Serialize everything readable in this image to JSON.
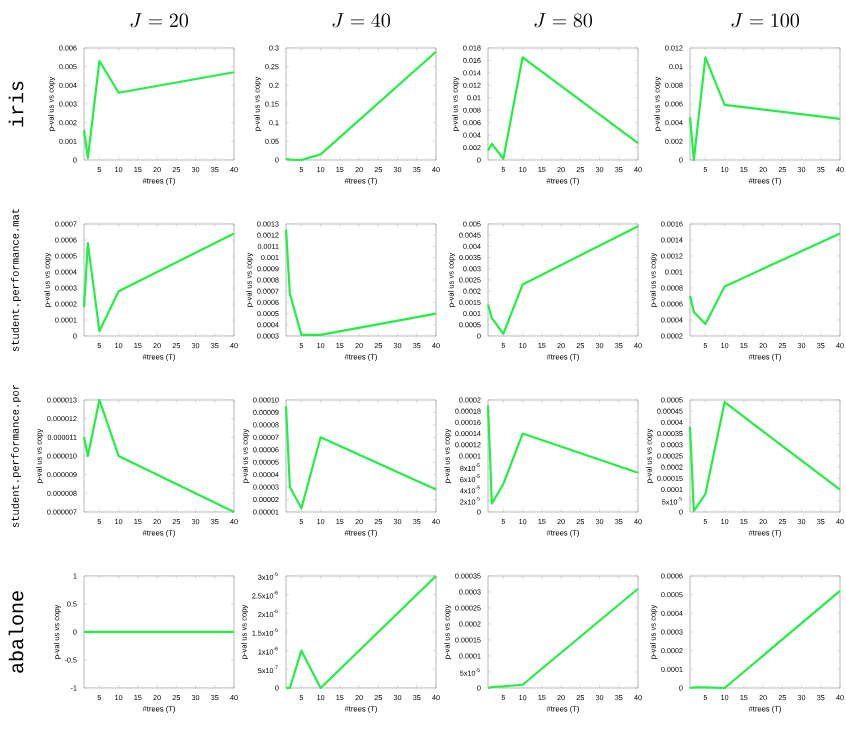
{
  "chart_data": [
    {
      "type": "line",
      "title": "J = 20",
      "annotations": [
        "iris"
      ],
      "xlabel": "#trees (T)",
      "ylabel": "p-val us vs copy",
      "x": [
        1,
        2,
        5,
        10,
        40
      ],
      "values": [
        0.0016,
        0.0001,
        0.0053,
        0.0036,
        0.0047
      ],
      "color": "#22ee44",
      "xlim": [
        1,
        40
      ],
      "xticks": [
        5,
        10,
        15,
        20,
        25,
        30,
        35,
        40
      ],
      "ylim": [
        0,
        0.006
      ],
      "yticks": [
        0,
        0.001,
        0.002,
        0.003,
        0.004,
        0.005,
        0.006
      ]
    },
    {
      "type": "line",
      "title": "J = 40",
      "xlabel": "#trees (T)",
      "ylabel": "p-val us vs copy",
      "x": [
        1,
        2,
        5,
        10,
        40
      ],
      "values": [
        0.003,
        0.001,
        0.0,
        0.015,
        0.29
      ],
      "color": "#22ee44",
      "xlim": [
        1,
        40
      ],
      "xticks": [
        5,
        10,
        15,
        20,
        25,
        30,
        35,
        40
      ],
      "ylim": [
        0,
        0.3
      ],
      "yticks": [
        0,
        0.05,
        0.1,
        0.15,
        0.2,
        0.25,
        0.3
      ]
    },
    {
      "type": "line",
      "title": "J = 80",
      "xlabel": "#trees (T)",
      "ylabel": "p-val us vs copy",
      "x": [
        1,
        2,
        5,
        10,
        40
      ],
      "values": [
        0.0015,
        0.0026,
        0.0002,
        0.0165,
        0.0027
      ],
      "color": "#22ee44",
      "xlim": [
        1,
        40
      ],
      "xticks": [
        5,
        10,
        15,
        20,
        25,
        30,
        35,
        40
      ],
      "ylim": [
        0,
        0.018
      ],
      "yticks": [
        0,
        0.002,
        0.004,
        0.006,
        0.008,
        0.01,
        0.012,
        0.014,
        0.016,
        0.018
      ]
    },
    {
      "type": "line",
      "title": "J = 100",
      "xlabel": "#trees (T)",
      "ylabel": "p-val us vs copy",
      "x": [
        1,
        2,
        5,
        10,
        40
      ],
      "values": [
        0.0046,
        0.0,
        0.011,
        0.0059,
        0.0044
      ],
      "color": "#22ee44",
      "xlim": [
        1,
        40
      ],
      "xticks": [
        5,
        10,
        15,
        20,
        25,
        30,
        35,
        40
      ],
      "ylim": [
        0,
        0.012
      ],
      "yticks": [
        0,
        0.002,
        0.004,
        0.006,
        0.008,
        0.01,
        0.012
      ]
    },
    {
      "type": "line",
      "annotations": [
        "student.performance.mat"
      ],
      "xlabel": "#trees (T)",
      "ylabel": "p-val us vs copy",
      "x": [
        1,
        2,
        5,
        10,
        40
      ],
      "values": [
        0.00018,
        0.00058,
        3e-05,
        0.00028,
        0.00064
      ],
      "color": "#22ee44",
      "xlim": [
        1,
        40
      ],
      "xticks": [
        5,
        10,
        15,
        20,
        25,
        30,
        35,
        40
      ],
      "ylim": [
        0,
        0.0007
      ],
      "yticks": [
        0,
        0.0001,
        0.0002,
        0.0003,
        0.0004,
        0.0005,
        0.0006,
        0.0007
      ]
    },
    {
      "type": "line",
      "xlabel": "#trees (T)",
      "ylabel": "p-val us vs copy",
      "x": [
        1,
        2,
        5,
        10,
        40
      ],
      "values": [
        0.00125,
        0.00068,
        0.00031,
        0.00031,
        0.0005
      ],
      "color": "#22ee44",
      "xlim": [
        1,
        40
      ],
      "xticks": [
        5,
        10,
        15,
        20,
        25,
        30,
        35,
        40
      ],
      "ylim": [
        0.0003,
        0.0013
      ],
      "yticks": [
        0.0003,
        0.0004,
        0.0005,
        0.0006,
        0.0007,
        0.0008,
        0.0009,
        0.001,
        0.0011,
        0.0012,
        0.0013
      ]
    },
    {
      "type": "line",
      "xlabel": "#trees (T)",
      "ylabel": "p-val us vs copy",
      "x": [
        1,
        2,
        5,
        10,
        40
      ],
      "values": [
        0.0014,
        0.0008,
        0.0001,
        0.0023,
        0.0049
      ],
      "color": "#22ee44",
      "xlim": [
        1,
        40
      ],
      "xticks": [
        5,
        10,
        15,
        20,
        25,
        30,
        35,
        40
      ],
      "ylim": [
        0,
        0.005
      ],
      "yticks": [
        0,
        0.0005,
        0.001,
        0.0015,
        0.002,
        0.0025,
        0.003,
        0.0035,
        0.004,
        0.0045,
        0.005
      ]
    },
    {
      "type": "line",
      "xlabel": "#trees (T)",
      "ylabel": "p-val us vs copy",
      "x": [
        1,
        2,
        5,
        10,
        40
      ],
      "values": [
        0.0007,
        0.0005,
        0.00035,
        0.00082,
        0.00148
      ],
      "color": "#22ee44",
      "xlim": [
        1,
        40
      ],
      "xticks": [
        5,
        10,
        15,
        20,
        25,
        30,
        35,
        40
      ],
      "ylim": [
        0.0002,
        0.0016
      ],
      "yticks": [
        0.0002,
        0.0004,
        0.0006,
        0.0008,
        0.001,
        0.0012,
        0.0014,
        0.0016
      ]
    },
    {
      "type": "line",
      "annotations": [
        "student.performance.por"
      ],
      "xlabel": "#trees (T)",
      "ylabel": "p-val us vs copy",
      "x": [
        1,
        2,
        5,
        10,
        40
      ],
      "values": [
        1.1e-05,
        1e-05,
        1.3e-05,
        1e-05,
        7e-06
      ],
      "color": "#22ee44",
      "xlim": [
        1,
        40
      ],
      "xticks": [
        5,
        10,
        15,
        20,
        25,
        30,
        35,
        40
      ],
      "ylim": [
        7e-06,
        1.3e-05
      ],
      "yticks": [
        {
          "value": 7e-06,
          "label": "0.000007"
        },
        {
          "value": 8e-06,
          "label": "0.000008"
        },
        {
          "value": 9e-06,
          "label": "0.000009"
        },
        {
          "value": 1e-05,
          "label": "0.000010"
        },
        {
          "value": 1.1e-05,
          "label": "0.000011"
        },
        {
          "value": 1.2e-05,
          "label": "0.000012"
        },
        {
          "value": 1.3e-05,
          "label": "0.000013"
        }
      ]
    },
    {
      "type": "line",
      "xlabel": "#trees (T)",
      "ylabel": "p-val us vs copy",
      "x": [
        1,
        2,
        5,
        10,
        40
      ],
      "values": [
        9.5e-05,
        3e-05,
        1.3e-05,
        7e-05,
        2.8e-05
      ],
      "color": "#22ee44",
      "xlim": [
        1,
        40
      ],
      "xticks": [
        5,
        10,
        15,
        20,
        25,
        30,
        35,
        40
      ],
      "ylim": [
        1e-05,
        0.0001
      ],
      "yticks": [
        {
          "value": 1e-05,
          "label": "0.00001"
        },
        {
          "value": 2e-05,
          "label": "0.00002"
        },
        {
          "value": 3e-05,
          "label": "0.00003"
        },
        {
          "value": 4e-05,
          "label": "0.00004"
        },
        {
          "value": 5e-05,
          "label": "0.00005"
        },
        {
          "value": 6e-05,
          "label": "0.00006"
        },
        {
          "value": 7e-05,
          "label": "0.00007"
        },
        {
          "value": 8e-05,
          "label": "0.00008"
        },
        {
          "value": 9e-05,
          "label": "0.00009"
        },
        {
          "value": 0.0001,
          "label": "0.00010"
        }
      ]
    },
    {
      "type": "line",
      "xlabel": "#trees (T)",
      "ylabel": "p-val us vs copy",
      "x": [
        1,
        2,
        5,
        10,
        40
      ],
      "values": [
        0.00019,
        1.5e-05,
        5e-05,
        0.00014,
        7e-05
      ],
      "color": "#22ee44",
      "xlim": [
        1,
        40
      ],
      "xticks": [
        5,
        10,
        15,
        20,
        25,
        30,
        35,
        40
      ],
      "ylim": [
        0,
        0.0002
      ],
      "yticks": [
        0,
        {
          "value": 2e-05,
          "label": "2x10$^{-5}$"
        },
        {
          "value": 4e-05,
          "label": "4x10$^{-5}$"
        },
        {
          "value": 6e-05,
          "label": "6x10$^{-5}$"
        },
        {
          "value": 8e-05,
          "label": "8x10$^{-5}$"
        },
        0.0001,
        0.00012,
        0.00014,
        0.00016,
        0.00018,
        0.0002
      ]
    },
    {
      "type": "line",
      "xlabel": "#trees (T)",
      "ylabel": "p-val us vs copy",
      "x": [
        1,
        2,
        5,
        10,
        40
      ],
      "values": [
        0.00038,
        5e-06,
        8e-05,
        0.00049,
        0.0001
      ],
      "color": "#22ee44",
      "xlim": [
        1,
        40
      ],
      "xticks": [
        5,
        10,
        15,
        20,
        25,
        30,
        35,
        40
      ],
      "ylim": [
        0,
        0.0005
      ],
      "yticks": [
        0,
        {
          "value": 5e-05,
          "label": "5x10$^{-5}$"
        },
        0.0001,
        0.00015,
        0.0002,
        0.00025,
        0.0003,
        0.00035,
        0.0004,
        0.00045,
        0.0005
      ]
    },
    {
      "type": "line",
      "annotations": [
        "abalone"
      ],
      "xlabel": "#trees (T)",
      "ylabel": "p-val us vs copy",
      "x": [
        1,
        2,
        5,
        10,
        40
      ],
      "values": [
        0,
        0,
        0,
        0,
        0
      ],
      "color": "#22ee44",
      "xlim": [
        1,
        40
      ],
      "xticks": [
        5,
        10,
        15,
        20,
        25,
        30,
        35,
        40
      ],
      "ylim": [
        -1,
        1
      ],
      "yticks": [
        -1,
        -0.5,
        0,
        0.5,
        1
      ]
    },
    {
      "type": "line",
      "xlabel": "#trees (T)",
      "ylabel": "p-val us vs copy",
      "x": [
        1,
        2,
        5,
        10,
        40
      ],
      "values": [
        0,
        0,
        1e-06,
        0,
        3e-06
      ],
      "color": "#22ee44",
      "xlim": [
        1,
        40
      ],
      "xticks": [
        5,
        10,
        15,
        20,
        25,
        30,
        35,
        40
      ],
      "ylim": [
        0,
        3e-06
      ],
      "yticks": [
        0,
        {
          "value": 5e-07,
          "label": "5x10$^{-7}$"
        },
        {
          "value": 1e-06,
          "label": "1x10$^{-6}$"
        },
        {
          "value": 1.5e-06,
          "label": "1.5x10$^{-6}$"
        },
        {
          "value": 2e-06,
          "label": "2x10$^{-6}$"
        },
        {
          "value": 2.5e-06,
          "label": "2.5x10$^{-6}$"
        },
        {
          "value": 3e-06,
          "label": "3x10$^{-6}$"
        }
      ]
    },
    {
      "type": "line",
      "xlabel": "#trees (T)",
      "ylabel": "p-val us vs copy",
      "x": [
        1,
        2,
        5,
        10,
        40
      ],
      "values": [
        0,
        3e-06,
        5e-06,
        1e-05,
        0.00031
      ],
      "color": "#22ee44",
      "xlim": [
        1,
        40
      ],
      "xticks": [
        5,
        10,
        15,
        20,
        25,
        30,
        35,
        40
      ],
      "ylim": [
        0,
        0.00035
      ],
      "yticks": [
        0,
        {
          "value": 5e-05,
          "label": "5x10$^{-5}$"
        },
        0.0001,
        0.00015,
        0.0002,
        0.00025,
        0.0003,
        0.00035
      ]
    },
    {
      "type": "line",
      "xlabel": "#trees (T)",
      "ylabel": "p-val us vs copy",
      "x": [
        1,
        2,
        5,
        10,
        40
      ],
      "values": [
        0,
        3e-06,
        3e-06,
        0,
        0.00052
      ],
      "color": "#22ee44",
      "xlim": [
        1,
        40
      ],
      "xticks": [
        5,
        10,
        15,
        20,
        25,
        30,
        35,
        40
      ],
      "ylim": [
        0,
        0.0006
      ],
      "yticks": [
        0,
        0.0001,
        0.0002,
        0.0003,
        0.0004,
        0.0005,
        0.0006
      ]
    }
  ]
}
